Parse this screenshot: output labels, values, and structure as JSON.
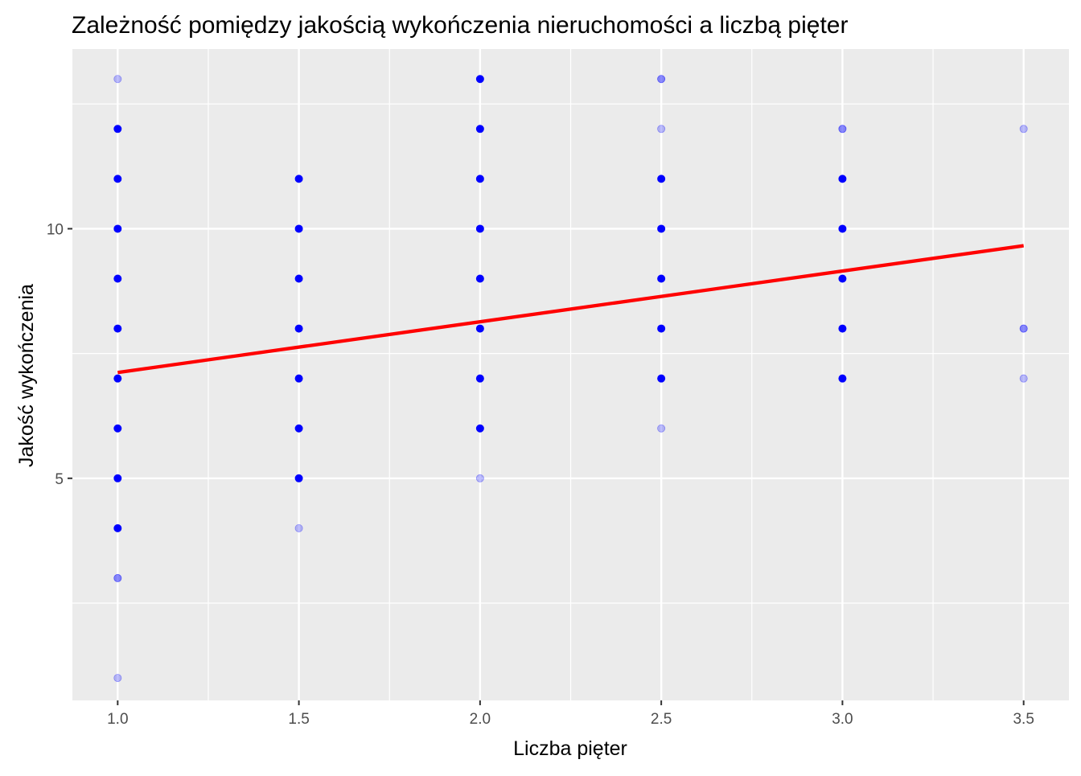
{
  "chart_data": {
    "type": "scatter",
    "title": "Zależność pomiędzy jakością wykończenia nieruchomości a liczbą pięter",
    "xlabel": "Liczba pięter",
    "ylabel": "Jakość wykończenia",
    "xlim": [
      0.875,
      3.625
    ],
    "ylim": [
      0.55,
      13.6
    ],
    "x_ticks": [
      1.0,
      1.5,
      2.0,
      2.5,
      3.0,
      3.5
    ],
    "x_tick_labels": [
      "1.0",
      "1.5",
      "2.0",
      "2.5",
      "3.0",
      "3.5"
    ],
    "y_ticks": [
      5,
      10
    ],
    "y_tick_labels": [
      "5",
      "10"
    ],
    "grid": true,
    "panel_background": "#ebebeb",
    "grid_color": "#ffffff",
    "point_color": "#0000ff",
    "line_color": "#ff0000",
    "points": [
      {
        "x": 1.0,
        "y": 1,
        "density": "low"
      },
      {
        "x": 1.0,
        "y": 3,
        "density": "medium"
      },
      {
        "x": 1.0,
        "y": 4,
        "density": "high"
      },
      {
        "x": 1.0,
        "y": 5,
        "density": "high"
      },
      {
        "x": 1.0,
        "y": 6,
        "density": "high"
      },
      {
        "x": 1.0,
        "y": 7,
        "density": "high"
      },
      {
        "x": 1.0,
        "y": 8,
        "density": "high"
      },
      {
        "x": 1.0,
        "y": 9,
        "density": "high"
      },
      {
        "x": 1.0,
        "y": 10,
        "density": "high"
      },
      {
        "x": 1.0,
        "y": 11,
        "density": "high"
      },
      {
        "x": 1.0,
        "y": 12,
        "density": "high"
      },
      {
        "x": 1.0,
        "y": 13,
        "density": "low"
      },
      {
        "x": 1.5,
        "y": 4,
        "density": "low"
      },
      {
        "x": 1.5,
        "y": 5,
        "density": "high"
      },
      {
        "x": 1.5,
        "y": 6,
        "density": "high"
      },
      {
        "x": 1.5,
        "y": 7,
        "density": "high"
      },
      {
        "x": 1.5,
        "y": 8,
        "density": "high"
      },
      {
        "x": 1.5,
        "y": 9,
        "density": "high"
      },
      {
        "x": 1.5,
        "y": 10,
        "density": "high"
      },
      {
        "x": 1.5,
        "y": 11,
        "density": "high"
      },
      {
        "x": 2.0,
        "y": 5,
        "density": "low"
      },
      {
        "x": 2.0,
        "y": 6,
        "density": "high"
      },
      {
        "x": 2.0,
        "y": 7,
        "density": "high"
      },
      {
        "x": 2.0,
        "y": 8,
        "density": "high"
      },
      {
        "x": 2.0,
        "y": 9,
        "density": "high"
      },
      {
        "x": 2.0,
        "y": 10,
        "density": "high"
      },
      {
        "x": 2.0,
        "y": 11,
        "density": "high"
      },
      {
        "x": 2.0,
        "y": 12,
        "density": "high"
      },
      {
        "x": 2.0,
        "y": 13,
        "density": "high"
      },
      {
        "x": 2.5,
        "y": 6,
        "density": "low"
      },
      {
        "x": 2.5,
        "y": 7,
        "density": "high"
      },
      {
        "x": 2.5,
        "y": 8,
        "density": "high"
      },
      {
        "x": 2.5,
        "y": 9,
        "density": "high"
      },
      {
        "x": 2.5,
        "y": 10,
        "density": "high"
      },
      {
        "x": 2.5,
        "y": 11,
        "density": "high"
      },
      {
        "x": 2.5,
        "y": 12,
        "density": "low"
      },
      {
        "x": 2.5,
        "y": 13,
        "density": "medium"
      },
      {
        "x": 3.0,
        "y": 7,
        "density": "high"
      },
      {
        "x": 3.0,
        "y": 8,
        "density": "high"
      },
      {
        "x": 3.0,
        "y": 9,
        "density": "high"
      },
      {
        "x": 3.0,
        "y": 10,
        "density": "high"
      },
      {
        "x": 3.0,
        "y": 11,
        "density": "high"
      },
      {
        "x": 3.0,
        "y": 12,
        "density": "medium"
      },
      {
        "x": 3.5,
        "y": 7,
        "density": "low"
      },
      {
        "x": 3.5,
        "y": 8,
        "density": "medium"
      },
      {
        "x": 3.5,
        "y": 12,
        "density": "low"
      }
    ],
    "trend_line": {
      "method": "linear",
      "x": [
        1.0,
        3.5
      ],
      "y": [
        7.12,
        9.66
      ]
    }
  }
}
